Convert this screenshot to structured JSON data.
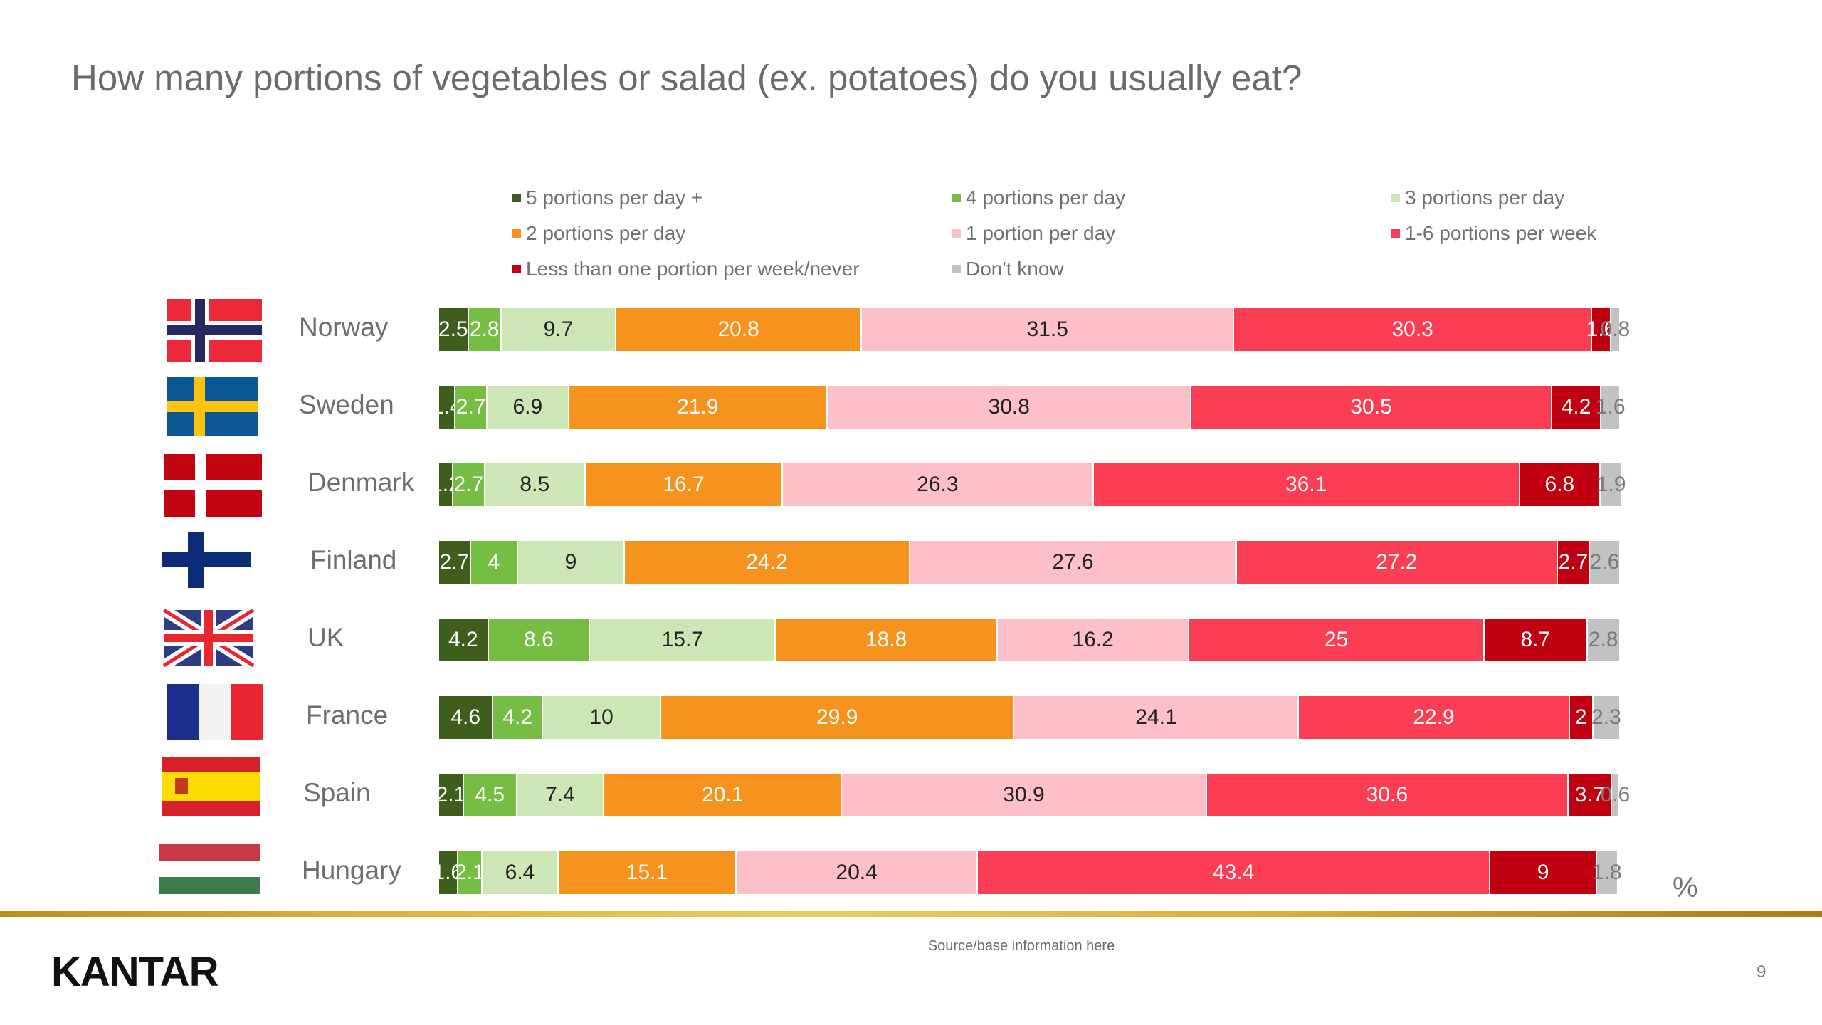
{
  "slide": {
    "title": "How many portions of vegetables or salad (ex. potatoes) do you usually eat?",
    "unit_marker": "%",
    "source": "Source/base information here",
    "brand": "KANTAR",
    "page_number": "9"
  },
  "chart_data": {
    "type": "bar",
    "orientation": "horizontal",
    "stacked": true,
    "title": "How many portions of vegetables or salad (ex. potatoes) do you usually eat?",
    "xlabel": "",
    "ylabel": "",
    "unit": "%",
    "xlim": [
      0,
      100
    ],
    "grid": false,
    "legend_position": "top",
    "categories": [
      "Norway",
      "Sweden",
      "Denmark",
      "Finland",
      "UK",
      "France",
      "Spain",
      "Hungary"
    ],
    "flags": [
      "norway-flag",
      "sweden-flag",
      "denmark-flag",
      "finland-flag",
      "uk-flag",
      "france-flag",
      "spain-flag",
      "hungary-flag"
    ],
    "series": [
      {
        "name": "5 portions per day +",
        "color": "#3d5e1d",
        "label_color": "#ffffff",
        "values": [
          2.5,
          1.4,
          1.2,
          2.7,
          4.2,
          4.6,
          2.1,
          1.6
        ]
      },
      {
        "name": "4 portions per day",
        "color": "#76bd44",
        "label_color": "#ffffff",
        "values": [
          2.8,
          2.7,
          2.7,
          4,
          8.6,
          4.2,
          4.5,
          2.1
        ]
      },
      {
        "name": "3 portions per day",
        "color": "#cde6b6",
        "label_color": "#222222",
        "values": [
          9.7,
          6.9,
          8.5,
          9,
          15.7,
          10,
          7.4,
          6.4
        ]
      },
      {
        "name": "2 portions per day",
        "color": "#f6921e",
        "label_color": "#ffffff",
        "values": [
          20.8,
          21.9,
          16.7,
          24.2,
          18.8,
          29.9,
          20.1,
          15.1
        ]
      },
      {
        "name": "1 portion per day",
        "color": "#fdc0c8",
        "label_color": "#222222",
        "values": [
          31.5,
          30.8,
          26.3,
          27.6,
          16.2,
          24.1,
          30.9,
          20.4
        ]
      },
      {
        "name": "1-6 portions per week",
        "color": "#fb3e54",
        "label_color": "#ffffff",
        "values": [
          30.3,
          30.5,
          36.1,
          27.2,
          25,
          22.9,
          30.6,
          43.4
        ]
      },
      {
        "name": "Less than one portion per week/never",
        "color": "#c00010",
        "label_color": "#ffffff",
        "values": [
          1.6,
          4.2,
          6.8,
          2.7,
          8.7,
          2,
          3.7,
          9
        ]
      },
      {
        "name": "Don't know",
        "color": "#c2c2c2",
        "label_color": "#7a7a7a",
        "values": [
          0.8,
          1.6,
          1.9,
          2.6,
          2.8,
          2.3,
          0.6,
          1.8
        ]
      }
    ]
  }
}
